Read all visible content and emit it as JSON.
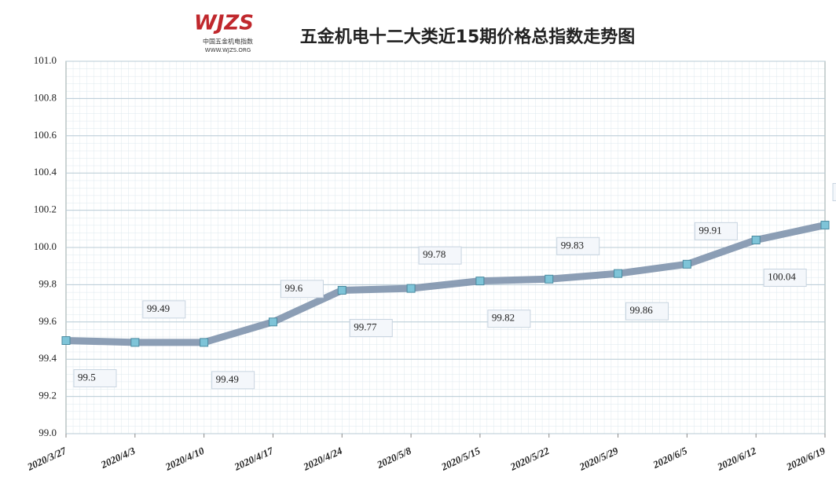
{
  "chart_data": {
    "type": "line",
    "title": "五金机电十二大类近15期价格总指数走势图",
    "logo_text": "WJZS",
    "logo_subtitle": "中国五金机电指数",
    "logo_url": "WWW.WJZS.ORG",
    "categories": [
      "2020/3/27",
      "2020/4/3",
      "2020/4/10",
      "2020/4/17",
      "2020/4/24",
      "2020/5/8",
      "2020/5/15",
      "2020/5/22",
      "2020/5/29",
      "2020/6/5",
      "2020/6/12",
      "2020/6/19"
    ],
    "series": [
      {
        "name": "价格总指数",
        "color": "#7f93ad",
        "values": [
          99.5,
          99.49,
          99.49,
          99.6,
          99.77,
          99.78,
          99.82,
          99.83,
          99.86,
          99.91,
          100.04,
          100.12
        ]
      }
    ],
    "ylim": [
      99,
      101
    ],
    "yticks": [
      {
        "value": 99,
        "label": "99.0"
      },
      99.2,
      99.4,
      99.6,
      99.8,
      {
        "value": 100,
        "label": "100.0"
      },
      100.2,
      100.4,
      100.6,
      100.8,
      {
        "value": 101,
        "label": "101.0"
      }
    ],
    "grid": true
  }
}
